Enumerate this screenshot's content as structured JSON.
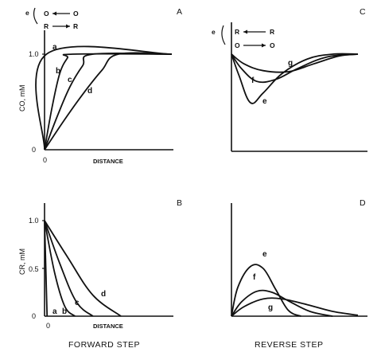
{
  "chart_data": [
    {
      "panel": "A",
      "type": "line",
      "ylabel": "CO, mM",
      "xlabel": "DISTANCE",
      "yticks": [
        "0",
        "1.0"
      ],
      "xticks": [
        "0"
      ],
      "scheme": {
        "electrode": "e",
        "top": [
          "O",
          "O"
        ],
        "bottom": [
          "R",
          "R"
        ]
      },
      "ylim": [
        0,
        1.2
      ],
      "xlim": [
        0,
        1
      ],
      "series": [
        {
          "name": "a",
          "x": [
            0,
            0.015,
            1.0
          ],
          "y": [
            0,
            1.0,
            1.0
          ]
        },
        {
          "name": "b",
          "x": [
            0,
            0.06,
            0.12,
            0.18,
            0.22,
            1.0
          ],
          "y": [
            0,
            0.45,
            0.8,
            0.96,
            1.0,
            1.0
          ]
        },
        {
          "name": "c",
          "x": [
            0,
            0.1,
            0.2,
            0.3,
            0.38,
            1.0
          ],
          "y": [
            0,
            0.35,
            0.66,
            0.88,
            1.0,
            1.0
          ]
        },
        {
          "name": "d",
          "x": [
            0,
            0.15,
            0.3,
            0.45,
            0.58,
            1.0
          ],
          "y": [
            0,
            0.3,
            0.58,
            0.83,
            1.0,
            1.0
          ]
        }
      ]
    },
    {
      "panel": "B",
      "type": "line",
      "ylabel": "CR, mM",
      "xlabel": "DISTANCE",
      "yticks": [
        "0",
        "0.5",
        "1.0"
      ],
      "xticks": [
        "0"
      ],
      "ylim": [
        0,
        1.2
      ],
      "xlim": [
        0,
        1
      ],
      "series": [
        {
          "name": "a",
          "x": [
            0,
            0.02
          ],
          "y": [
            1.0,
            0.0
          ]
        },
        {
          "name": "b",
          "x": [
            0,
            0.08,
            0.16,
            0.24
          ],
          "y": [
            1.0,
            0.45,
            0.1,
            0.0
          ]
        },
        {
          "name": "c",
          "x": [
            0,
            0.12,
            0.25,
            0.38
          ],
          "y": [
            1.0,
            0.55,
            0.15,
            0.0
          ]
        },
        {
          "name": "d",
          "x": [
            0,
            0.18,
            0.38,
            0.6
          ],
          "y": [
            1.0,
            0.62,
            0.22,
            0.0
          ]
        }
      ]
    },
    {
      "panel": "C",
      "type": "line",
      "scheme": {
        "electrode": "e",
        "top": [
          "R",
          "R"
        ],
        "bottom": [
          "O",
          "O"
        ]
      },
      "ylim": [
        0,
        1.2
      ],
      "xlim": [
        0,
        1
      ],
      "series": [
        {
          "name": "g",
          "x": [
            0,
            0.1,
            0.25,
            0.45,
            0.65,
            0.85,
            1.0
          ],
          "y": [
            1.0,
            0.9,
            0.83,
            0.82,
            0.9,
            0.98,
            1.0
          ]
        },
        {
          "name": "f",
          "x": [
            0,
            0.08,
            0.2,
            0.35,
            0.52,
            0.75,
            1.0
          ],
          "y": [
            1.0,
            0.85,
            0.72,
            0.74,
            0.85,
            0.97,
            1.0
          ]
        },
        {
          "name": "e",
          "x": [
            0,
            0.06,
            0.15,
            0.25,
            0.4,
            0.6,
            0.8,
            1.0
          ],
          "y": [
            1.0,
            0.78,
            0.5,
            0.6,
            0.8,
            0.95,
            1.0,
            1.0
          ]
        }
      ]
    },
    {
      "panel": "D",
      "type": "line",
      "ylim": [
        0,
        1.2
      ],
      "xlim": [
        0,
        1
      ],
      "series": [
        {
          "name": "e",
          "x": [
            0,
            0.05,
            0.15,
            0.25,
            0.35,
            0.45,
            0.55
          ],
          "y": [
            0,
            0.3,
            0.52,
            0.5,
            0.28,
            0.06,
            0
          ]
        },
        {
          "name": "f",
          "x": [
            0,
            0.08,
            0.2,
            0.32,
            0.45,
            0.62,
            0.8
          ],
          "y": [
            0,
            0.15,
            0.26,
            0.25,
            0.16,
            0.05,
            0
          ]
        },
        {
          "name": "g",
          "x": [
            0,
            0.1,
            0.25,
            0.4,
            0.6,
            0.8,
            1.0
          ],
          "y": [
            0,
            0.1,
            0.18,
            0.18,
            0.12,
            0.05,
            0.01
          ]
        }
      ]
    }
  ],
  "captions": {
    "left": "FORWARD STEP",
    "right": "REVERSE STEP"
  },
  "panels": {
    "A": "A",
    "B": "B",
    "C": "C",
    "D": "D"
  }
}
